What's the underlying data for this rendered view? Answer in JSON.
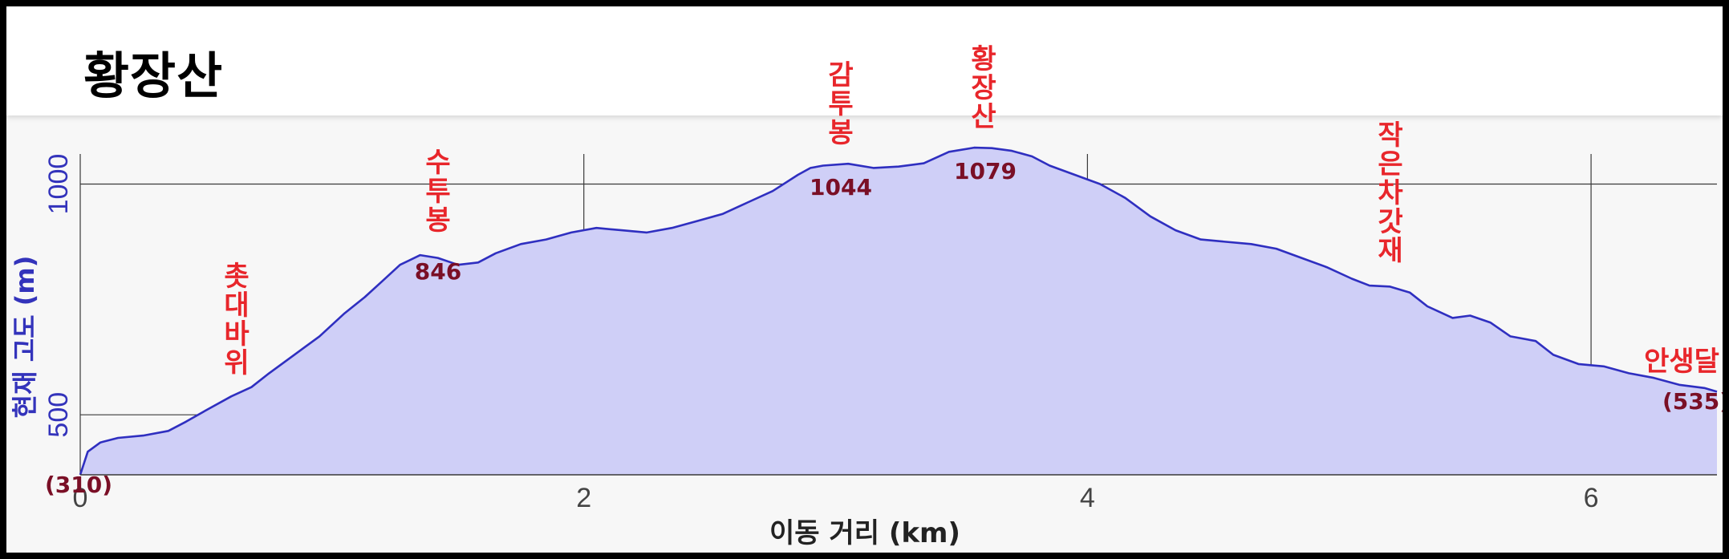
{
  "header": {
    "title": "황장산"
  },
  "colors": {
    "area_fill": "#cfcff7",
    "line": "#2f2fc0",
    "peak_name": "#e8262b",
    "peak_value": "#7a0f26",
    "axis_label": "#3333bb",
    "grid": "#3a3a3a",
    "text": "#222222"
  },
  "chart_data": {
    "type": "area",
    "title": "황장산",
    "xlabel": "이동 거리 (km)",
    "ylabel": "현재 고도 (m)",
    "xlim": [
      0,
      6.5
    ],
    "ylim": [
      370,
      1100
    ],
    "xticks": [
      0,
      2,
      4,
      6
    ],
    "yticks": [
      500,
      1000
    ],
    "grid": true,
    "series": [
      {
        "x": [
          0,
          0.03,
          0.08,
          0.15,
          0.25,
          0.35,
          0.42,
          0.5,
          0.6,
          0.68,
          0.75,
          0.85,
          0.95,
          1.05,
          1.13,
          1.2,
          1.27,
          1.35,
          1.42,
          1.5,
          1.58,
          1.65,
          1.75,
          1.85,
          1.95,
          2.05,
          2.15,
          2.25,
          2.35,
          2.45,
          2.55,
          2.65,
          2.75,
          2.85,
          2.9,
          2.95,
          3.05,
          3.15,
          3.25,
          3.35,
          3.45,
          3.55,
          3.62,
          3.7,
          3.78,
          3.85,
          3.95,
          4.05,
          4.15,
          4.25,
          4.35,
          4.45,
          4.55,
          4.65,
          4.75,
          4.85,
          4.95,
          5.05,
          5.12,
          5.2,
          5.28,
          5.35,
          5.45,
          5.52,
          5.6,
          5.68,
          5.78,
          5.85,
          5.95,
          6.05,
          6.15,
          6.25,
          6.35,
          6.45,
          6.5
        ],
        "y": [
          370,
          420,
          440,
          450,
          455,
          465,
          485,
          510,
          540,
          560,
          590,
          630,
          670,
          720,
          755,
          790,
          825,
          846,
          840,
          825,
          830,
          850,
          870,
          880,
          895,
          905,
          900,
          895,
          905,
          920,
          935,
          960,
          985,
          1020,
          1035,
          1040,
          1044,
          1035,
          1038,
          1045,
          1070,
          1079,
          1078,
          1072,
          1060,
          1040,
          1020,
          1000,
          970,
          930,
          900,
          880,
          875,
          870,
          860,
          840,
          820,
          795,
          780,
          778,
          765,
          735,
          710,
          715,
          700,
          670,
          660,
          630,
          610,
          605,
          590,
          580,
          565,
          558,
          550
        ]
      }
    ],
    "annotations": [
      {
        "name": "촛대바위",
        "value": null,
        "x": 0.62,
        "y": 558
      },
      {
        "name": "수투봉",
        "value": "846",
        "x": 1.42,
        "y": 846
      },
      {
        "name": "감투봉",
        "value": "1044",
        "x": 3.05,
        "y": 1044
      },
      {
        "name": "황장산",
        "value": "1079",
        "x": 3.62,
        "y": 1079
      },
      {
        "name": "작은차갓재",
        "value": null,
        "x": 5.2,
        "y": 778
      },
      {
        "name": "안생달",
        "value": "(535)",
        "x": 6.5,
        "y": 550
      },
      {
        "name": "",
        "value": "(310)",
        "x": 0,
        "y": 370
      }
    ]
  }
}
